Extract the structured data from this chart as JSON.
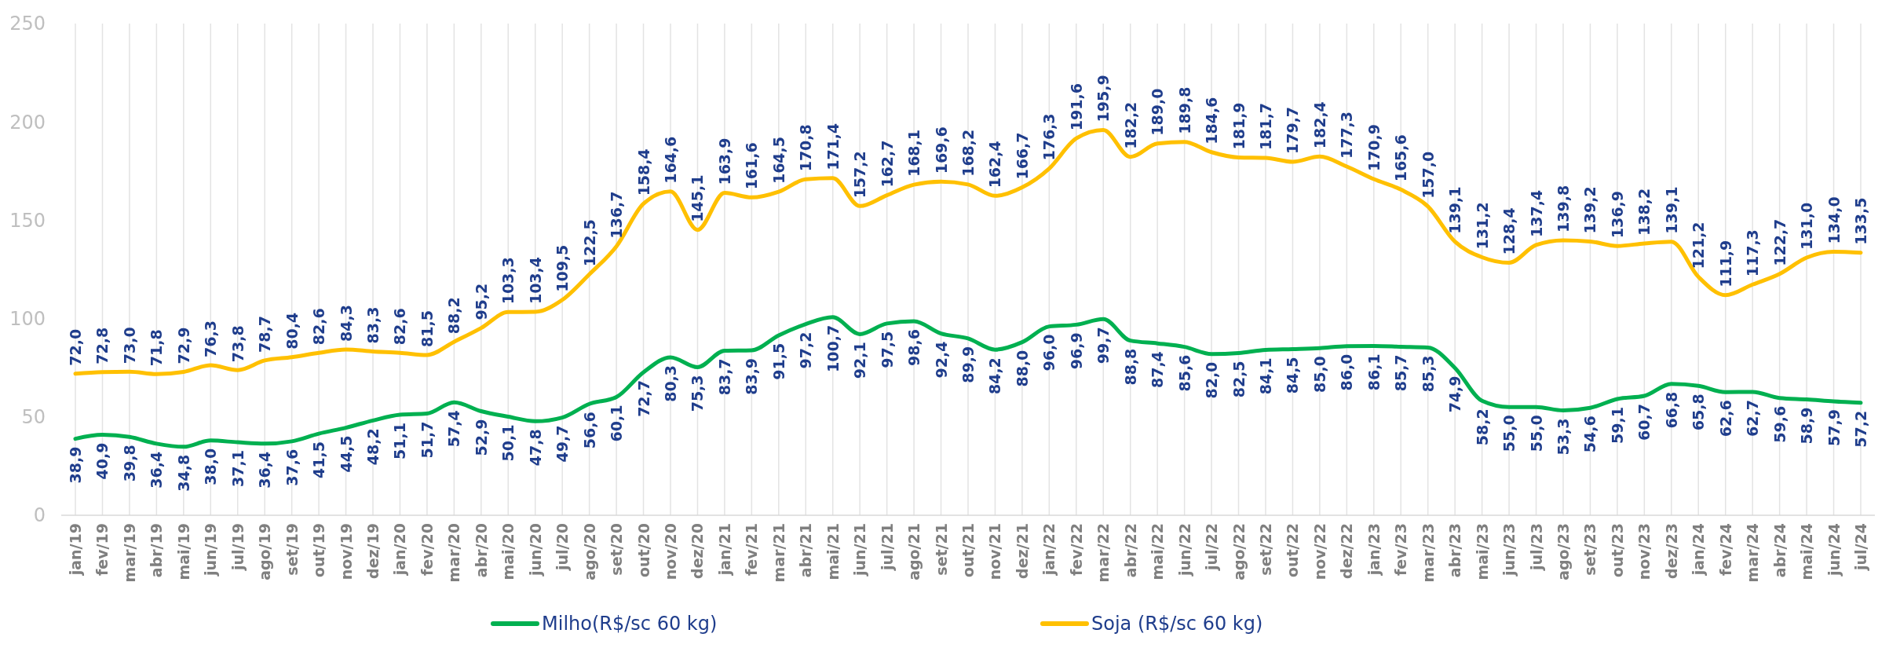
{
  "chart_data": {
    "type": "line",
    "categories": [
      "jan/19",
      "fev/19",
      "mar/19",
      "abr/19",
      "mai/19",
      "jun/19",
      "jul/19",
      "ago/19",
      "set/19",
      "out/19",
      "nov/19",
      "dez/19",
      "jan/20",
      "fev/20",
      "mar/20",
      "abr/20",
      "mai/20",
      "jun/20",
      "jul/20",
      "ago/20",
      "set/20",
      "out/20",
      "nov/20",
      "dez/20",
      "jan/21",
      "fev/21",
      "mar/21",
      "abr/21",
      "mai/21",
      "jun/21",
      "jul/21",
      "ago/21",
      "set/21",
      "out/21",
      "nov/21",
      "dez/21",
      "jan/22",
      "fev/22",
      "mar/22",
      "abr/22",
      "mai/22",
      "jun/22",
      "jul/22",
      "ago/22",
      "set/22",
      "out/22",
      "nov/22",
      "dez/22",
      "jan/23",
      "fev/23",
      "mar/23",
      "abr/23",
      "mai/23",
      "jun/23",
      "jul/23",
      "ago/23",
      "set/23",
      "out/23",
      "nov/23",
      "dez/23",
      "jan/24",
      "fev/24",
      "mar/24",
      "abr/24",
      "mai/24",
      "jun/24",
      "jul/24"
    ],
    "series": [
      {
        "name": "Milho(R$/sc 60 kg)",
        "color": "#00b050",
        "values": [
          38.9,
          40.9,
          39.8,
          36.4,
          34.8,
          38.0,
          37.1,
          36.4,
          37.6,
          41.5,
          44.5,
          48.2,
          51.1,
          51.7,
          57.4,
          52.9,
          50.1,
          47.8,
          49.7,
          56.6,
          60.1,
          72.7,
          80.3,
          75.3,
          83.7,
          83.9,
          91.5,
          97.2,
          100.7,
          92.1,
          97.5,
          98.6,
          92.4,
          89.9,
          84.2,
          88.0,
          96.0,
          96.9,
          99.7,
          88.8,
          87.4,
          85.6,
          82.0,
          82.5,
          84.1,
          84.5,
          85.0,
          86.0,
          86.1,
          85.7,
          85.3,
          74.9,
          58.2,
          55.0,
          55.0,
          53.3,
          54.6,
          59.1,
          60.7,
          66.8,
          65.8,
          62.6,
          62.7,
          59.6,
          58.9,
          57.9,
          57.2
        ],
        "value_labels": [
          "38,9",
          "40,9",
          "39,8",
          "36,4",
          "34,8",
          "38,0",
          "37,1",
          "36,4",
          "37,6",
          "41,5",
          "44,5",
          "48,2",
          "51,1",
          "51,7",
          "57,4",
          "52,9",
          "50,1",
          "47,8",
          "49,7",
          "56,6",
          "60,1",
          "72,7",
          "80,3",
          "75,3",
          "83,7",
          "83,9",
          "91,5",
          "97,2",
          "100,7",
          "92,1",
          "97,5",
          "98,6",
          "92,4",
          "89,9",
          "84,2",
          "88,0",
          "96,0",
          "96,9",
          "99,7",
          "88,8",
          "87,4",
          "85,6",
          "82,0",
          "82,5",
          "84,1",
          "84,5",
          "85,0",
          "86,0",
          "86,1",
          "85,7",
          "85,3",
          "74,9",
          "58,2",
          "55,0",
          "55,0",
          "53,3",
          "54,6",
          "59,1",
          "60,7",
          "66,8",
          "65,8",
          "62,6",
          "62,7",
          "59,6",
          "58,9",
          "57,9",
          "57,2"
        ]
      },
      {
        "name": "Soja (R$/sc 60 kg)",
        "color": "#ffc000",
        "values": [
          72.0,
          72.8,
          73.0,
          71.8,
          72.9,
          76.3,
          73.8,
          78.7,
          80.4,
          82.6,
          84.3,
          83.3,
          82.6,
          81.5,
          88.2,
          95.2,
          103.3,
          103.4,
          109.5,
          122.5,
          136.7,
          158.4,
          164.6,
          145.1,
          163.9,
          161.6,
          164.5,
          170.8,
          171.4,
          157.2,
          162.7,
          168.1,
          169.6,
          168.2,
          162.4,
          166.7,
          176.3,
          191.6,
          195.9,
          182.2,
          189.0,
          189.8,
          184.6,
          181.9,
          181.7,
          179.7,
          182.4,
          177.3,
          170.9,
          165.6,
          157.0,
          139.1,
          131.2,
          128.4,
          137.4,
          139.8,
          139.2,
          136.9,
          138.2,
          139.1,
          121.2,
          111.9,
          117.3,
          122.7,
          131.0,
          134.0,
          133.5
        ],
        "value_labels": [
          "72,0",
          "72,8",
          "73,0",
          "71,8",
          "72,9",
          "76,3",
          "73,8",
          "78,7",
          "80,4",
          "82,6",
          "84,3",
          "83,3",
          "82,6",
          "81,5",
          "88,2",
          "95,2",
          "103,3",
          "103,4",
          "109,5",
          "122,5",
          "136,7",
          "158,4",
          "164,6",
          "145,1",
          "163,9",
          "161,6",
          "164,5",
          "170,8",
          "171,4",
          "157,2",
          "162,7",
          "168,1",
          "169,6",
          "168,2",
          "162,4",
          "166,7",
          "176,3",
          "191,6",
          "195,9",
          "182,2",
          "189,0",
          "189,8",
          "184,6",
          "181,9",
          "181,7",
          "179,7",
          "182,4",
          "177,3",
          "170,9",
          "165,6",
          "157,0",
          "139,1",
          "131,2",
          "128,4",
          "137,4",
          "139,8",
          "139,2",
          "136,9",
          "138,2",
          "139,1",
          "121,2",
          "111,9",
          "117,3",
          "122,7",
          "131,0",
          "134,0",
          "133,5"
        ]
      }
    ],
    "ylim": [
      0,
      250
    ],
    "yticks": [
      0,
      50,
      100,
      150,
      200,
      250
    ],
    "grid": "x",
    "legend": "bottom",
    "marker": "none",
    "line_style": "solid"
  }
}
